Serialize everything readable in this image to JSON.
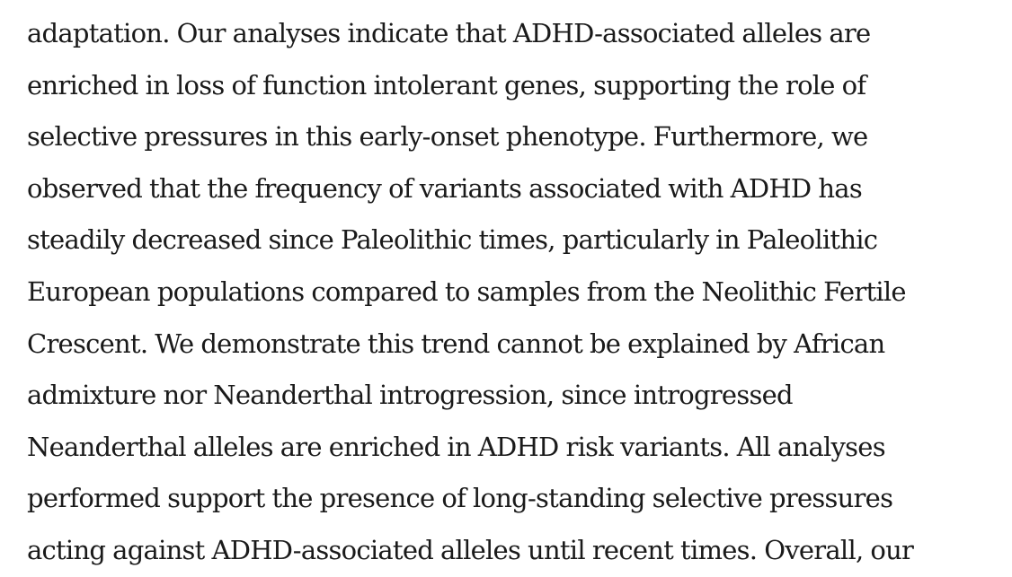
{
  "abstract": {
    "lines": [
      "adaptation. Our analyses indicate that ADHD-associated alleles are",
      "enriched in loss of function intolerant genes, supporting the role of",
      "selective pressures in this early-onset phenotype. Furthermore, we",
      "observed that the frequency of variants associated with ADHD has",
      "steadily decreased since Paleolithic times, particularly in Paleolithic",
      "European populations compared to samples from the Neolithic Fertile",
      "Crescent. We demonstrate this trend cannot be explained by African",
      "admixture nor Neanderthal introgression, since introgressed",
      "Neanderthal alleles are enriched in ADHD risk variants. All analyses",
      "performed support the presence of long-standing selective pressures",
      "acting against ADHD-associated alleles until recent times. Overall, our"
    ]
  }
}
